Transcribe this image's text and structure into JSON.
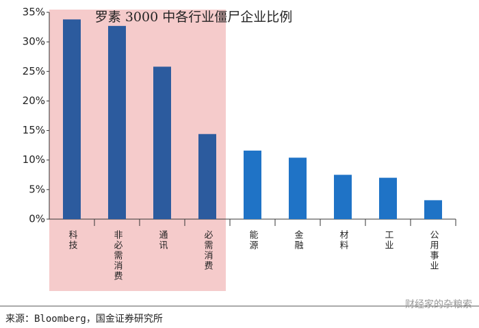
{
  "chart_data": {
    "type": "bar",
    "title": "罗素 3000 中各行业僵尸企业比例",
    "categories": [
      "科技",
      "非必需消费",
      "通讯",
      "必需消费",
      "能源",
      "金融",
      "材料",
      "工业",
      "公用事业"
    ],
    "values": [
      33.8,
      32.7,
      25.8,
      14.4,
      11.6,
      10.4,
      7.5,
      7.0,
      3.2
    ],
    "colors": [
      "#2c5b9e",
      "#2c5b9e",
      "#2c5b9e",
      "#2c5b9e",
      "#1f73c6",
      "#1f73c6",
      "#1f73c6",
      "#1f73c6",
      "#1f73c6"
    ],
    "ylim": [
      0,
      35
    ],
    "yticks": [
      {
        "value": 0,
        "label": "0%"
      },
      {
        "value": 5,
        "label": "5%"
      },
      {
        "value": 10,
        "label": "10%"
      },
      {
        "value": 15,
        "label": "15%"
      },
      {
        "value": 20,
        "label": "20%"
      },
      {
        "value": 25,
        "label": "25%"
      },
      {
        "value": 30,
        "label": "30%"
      },
      {
        "value": 35,
        "label": "35%"
      }
    ],
    "grid": false,
    "source": "来源：Bloomberg，国金证券研究所",
    "watermark": "财经家的杂粮索"
  }
}
